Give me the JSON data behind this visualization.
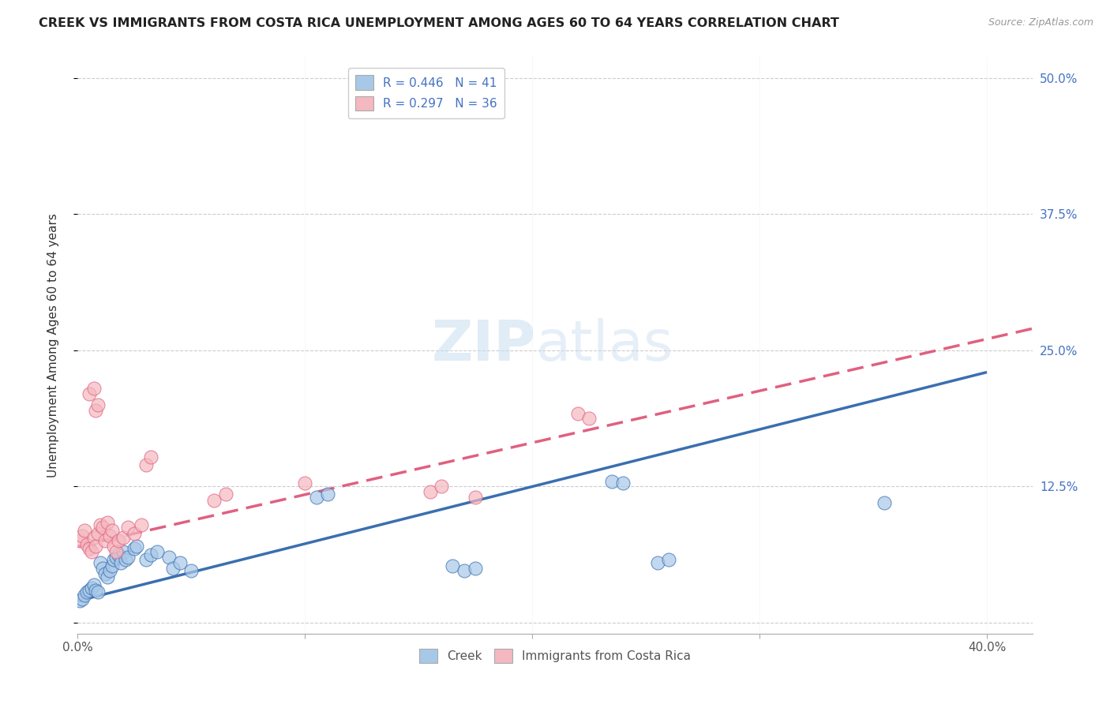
{
  "title": "CREEK VS IMMIGRANTS FROM COSTA RICA UNEMPLOYMENT AMONG AGES 60 TO 64 YEARS CORRELATION CHART",
  "source": "Source: ZipAtlas.com",
  "ylabel": "Unemployment Among Ages 60 to 64 years",
  "xlim": [
    0.0,
    0.42
  ],
  "ylim": [
    -0.01,
    0.52
  ],
  "xticks": [
    0.0,
    0.1,
    0.2,
    0.3,
    0.4
  ],
  "xticklabels": [
    "0.0%",
    "",
    "",
    "",
    "40.0%"
  ],
  "yticks": [
    0.0,
    0.125,
    0.25,
    0.375,
    0.5
  ],
  "yticklabels": [
    "",
    "12.5%",
    "25.0%",
    "37.5%",
    "50.0%"
  ],
  "creek_color": "#a8c8e8",
  "immigrant_color": "#f4b8c0",
  "creek_line_color": "#3a6faf",
  "immigrant_line_color": "#e06080",
  "background_color": "#ffffff",
  "grid_color": "#cccccc",
  "creek_x": [
    0.001,
    0.002,
    0.003,
    0.004,
    0.005,
    0.006,
    0.007,
    0.008,
    0.009,
    0.01,
    0.011,
    0.012,
    0.013,
    0.014,
    0.015,
    0.016,
    0.017,
    0.018,
    0.019,
    0.02,
    0.021,
    0.022,
    0.025,
    0.026,
    0.03,
    0.032,
    0.035,
    0.04,
    0.042,
    0.045,
    0.05,
    0.105,
    0.11,
    0.165,
    0.17,
    0.175,
    0.235,
    0.24,
    0.255,
    0.26,
    0.355
  ],
  "creek_y": [
    0.02,
    0.022,
    0.025,
    0.028,
    0.03,
    0.032,
    0.035,
    0.03,
    0.028,
    0.055,
    0.05,
    0.045,
    0.042,
    0.048,
    0.052,
    0.058,
    0.06,
    0.062,
    0.055,
    0.065,
    0.058,
    0.06,
    0.068,
    0.07,
    0.058,
    0.062,
    0.065,
    0.06,
    0.05,
    0.055,
    0.048,
    0.115,
    0.118,
    0.052,
    0.048,
    0.05,
    0.13,
    0.128,
    0.055,
    0.058,
    0.11
  ],
  "immigrant_x": [
    0.001,
    0.002,
    0.003,
    0.004,
    0.005,
    0.006,
    0.007,
    0.008,
    0.009,
    0.01,
    0.011,
    0.012,
    0.013,
    0.014,
    0.015,
    0.016,
    0.017,
    0.018,
    0.02,
    0.022,
    0.025,
    0.028,
    0.03,
    0.032,
    0.06,
    0.065,
    0.1,
    0.155,
    0.16,
    0.175,
    0.22,
    0.225,
    0.005,
    0.007,
    0.008,
    0.009
  ],
  "immigrant_y": [
    0.075,
    0.08,
    0.085,
    0.072,
    0.068,
    0.065,
    0.078,
    0.07,
    0.082,
    0.09,
    0.088,
    0.075,
    0.092,
    0.08,
    0.085,
    0.07,
    0.065,
    0.075,
    0.078,
    0.088,
    0.082,
    0.09,
    0.145,
    0.152,
    0.112,
    0.118,
    0.128,
    0.12,
    0.125,
    0.115,
    0.192,
    0.188,
    0.21,
    0.215,
    0.195,
    0.2
  ],
  "creek_line_x": [
    0.0,
    0.4
  ],
  "creek_line_y": [
    0.02,
    0.23
  ],
  "immigrant_line_x": [
    0.0,
    0.42
  ],
  "immigrant_line_y": [
    0.07,
    0.27
  ]
}
